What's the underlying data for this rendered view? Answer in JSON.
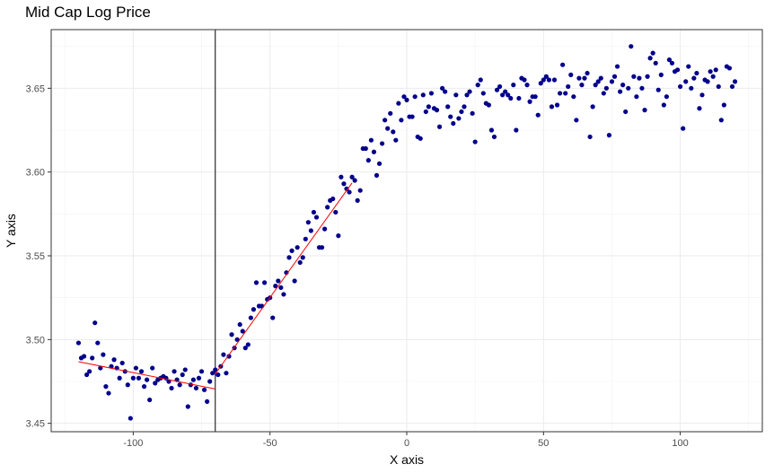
{
  "chart_data": {
    "type": "scatter",
    "title": "Mid Cap Log Price",
    "xlabel": "X axis",
    "ylabel": "Y axis",
    "xlim": [
      -130,
      130
    ],
    "ylim": [
      3.445,
      3.685
    ],
    "x_ticks": [
      -100,
      -50,
      0,
      50,
      100
    ],
    "x_tick_labels": [
      "-100",
      "-50",
      "0",
      "50",
      "100"
    ],
    "y_ticks": [
      3.45,
      3.5,
      3.55,
      3.6,
      3.65
    ],
    "y_tick_labels": [
      "3.45",
      "3.50",
      "3.55",
      "3.60",
      "3.65"
    ],
    "grid": true,
    "vline_x": -70,
    "point_color": "#00008B",
    "fit_color": "#ff0000",
    "points": [
      [
        -120,
        3.498
      ],
      [
        -119,
        3.489
      ],
      [
        -118,
        3.49
      ],
      [
        -117,
        3.479
      ],
      [
        -116,
        3.481
      ],
      [
        -115,
        3.489
      ],
      [
        -114,
        3.51
      ],
      [
        -113,
        3.498
      ],
      [
        -112,
        3.483
      ],
      [
        -111,
        3.491
      ],
      [
        -110,
        3.472
      ],
      [
        -109,
        3.468
      ],
      [
        -108,
        3.484
      ],
      [
        -107,
        3.488
      ],
      [
        -106,
        3.483
      ],
      [
        -105,
        3.477
      ],
      [
        -104,
        3.486
      ],
      [
        -103,
        3.481
      ],
      [
        -102,
        3.473
      ],
      [
        -101,
        3.453
      ],
      [
        -100,
        3.477
      ],
      [
        -99,
        3.483
      ],
      [
        -98,
        3.477
      ],
      [
        -97,
        3.481
      ],
      [
        -96,
        3.472
      ],
      [
        -95,
        3.476
      ],
      [
        -94,
        3.464
      ],
      [
        -93,
        3.483
      ],
      [
        -92,
        3.474
      ],
      [
        -91,
        3.476
      ],
      [
        -90,
        3.477
      ],
      [
        -89,
        3.478
      ],
      [
        -88,
        3.477
      ],
      [
        -87,
        3.475
      ],
      [
        -86,
        3.471
      ],
      [
        -85,
        3.481
      ],
      [
        -84,
        3.476
      ],
      [
        -83,
        3.473
      ],
      [
        -82,
        3.479
      ],
      [
        -81,
        3.482
      ],
      [
        -80,
        3.46
      ],
      [
        -79,
        3.473
      ],
      [
        -78,
        3.476
      ],
      [
        -77,
        3.471
      ],
      [
        -76,
        3.477
      ],
      [
        -75,
        3.481
      ],
      [
        -74,
        3.47
      ],
      [
        -73,
        3.463
      ],
      [
        -72,
        3.475
      ],
      [
        -71,
        3.48
      ],
      [
        -70,
        3.482
      ],
      [
        -69,
        3.479
      ],
      [
        -68,
        3.484
      ],
      [
        -67,
        3.491
      ],
      [
        -66,
        3.48
      ],
      [
        -65,
        3.49
      ],
      [
        -64,
        3.503
      ],
      [
        -63,
        3.495
      ],
      [
        -62,
        3.5
      ],
      [
        -61,
        3.509
      ],
      [
        -60,
        3.505
      ],
      [
        -59,
        3.495
      ],
      [
        -58,
        3.497
      ],
      [
        -57,
        3.513
      ],
      [
        -56,
        3.518
      ],
      [
        -55,
        3.534
      ],
      [
        -54,
        3.52
      ],
      [
        -53,
        3.52
      ],
      [
        -52,
        3.534
      ],
      [
        -51,
        3.524
      ],
      [
        -50,
        3.525
      ],
      [
        -49,
        3.513
      ],
      [
        -48,
        3.532
      ],
      [
        -47,
        3.535
      ],
      [
        -46,
        3.531
      ],
      [
        -45,
        3.527
      ],
      [
        -44,
        3.54
      ],
      [
        -43,
        3.549
      ],
      [
        -42,
        3.553
      ],
      [
        -41,
        3.535
      ],
      [
        -40,
        3.555
      ],
      [
        -39,
        3.546
      ],
      [
        -38,
        3.549
      ],
      [
        -37,
        3.56
      ],
      [
        -36,
        3.57
      ],
      [
        -35,
        3.565
      ],
      [
        -34,
        3.576
      ],
      [
        -33,
        3.573
      ],
      [
        -32,
        3.555
      ],
      [
        -31,
        3.555
      ],
      [
        -30,
        3.566
      ],
      [
        -29,
        3.579
      ],
      [
        -28,
        3.583
      ],
      [
        -27,
        3.584
      ],
      [
        -26,
        3.576
      ],
      [
        -25,
        3.562
      ],
      [
        -24,
        3.597
      ],
      [
        -23,
        3.593
      ],
      [
        -22,
        3.59
      ],
      [
        -21,
        3.588
      ],
      [
        -20,
        3.597
      ],
      [
        -19,
        3.595
      ],
      [
        -18,
        3.583
      ],
      [
        -17,
        3.589
      ],
      [
        -16,
        3.614
      ],
      [
        -15,
        3.614
      ],
      [
        -14,
        3.607
      ],
      [
        -13,
        3.619
      ],
      [
        -12,
        3.612
      ],
      [
        -11,
        3.598
      ],
      [
        -10,
        3.605
      ],
      [
        -9,
        3.617
      ],
      [
        -8,
        3.631
      ],
      [
        -7,
        3.626
      ],
      [
        -6,
        3.635
      ],
      [
        -5,
        3.624
      ],
      [
        -4,
        3.619
      ],
      [
        -3,
        3.641
      ],
      [
        -2,
        3.631
      ],
      [
        -1,
        3.645
      ],
      [
        0,
        3.643
      ],
      [
        1,
        3.633
      ],
      [
        2,
        3.633
      ],
      [
        3,
        3.645
      ],
      [
        4,
        3.621
      ],
      [
        5,
        3.62
      ],
      [
        6,
        3.646
      ],
      [
        7,
        3.636
      ],
      [
        8,
        3.639
      ],
      [
        9,
        3.647
      ],
      [
        10,
        3.638
      ],
      [
        11,
        3.637
      ],
      [
        12,
        3.627
      ],
      [
        13,
        3.65
      ],
      [
        14,
        3.648
      ],
      [
        15,
        3.639
      ],
      [
        16,
        3.633
      ],
      [
        17,
        3.629
      ],
      [
        18,
        3.646
      ],
      [
        19,
        3.632
      ],
      [
        20,
        3.636
      ],
      [
        21,
        3.639
      ],
      [
        22,
        3.646
      ],
      [
        23,
        3.648
      ],
      [
        24,
        3.635
      ],
      [
        25,
        3.618
      ],
      [
        26,
        3.652
      ],
      [
        27,
        3.655
      ],
      [
        28,
        3.647
      ],
      [
        29,
        3.641
      ],
      [
        30,
        3.64
      ],
      [
        31,
        3.625
      ],
      [
        32,
        3.621
      ],
      [
        33,
        3.649
      ],
      [
        34,
        3.651
      ],
      [
        35,
        3.646
      ],
      [
        36,
        3.648
      ],
      [
        37,
        3.646
      ],
      [
        38,
        3.644
      ],
      [
        39,
        3.652
      ],
      [
        40,
        3.625
      ],
      [
        41,
        3.644
      ],
      [
        42,
        3.656
      ],
      [
        43,
        3.655
      ],
      [
        44,
        3.652
      ],
      [
        45,
        3.642
      ],
      [
        46,
        3.645
      ],
      [
        47,
        3.645
      ],
      [
        48,
        3.634
      ],
      [
        49,
        3.653
      ],
      [
        50,
        3.655
      ],
      [
        51,
        3.657
      ],
      [
        52,
        3.655
      ],
      [
        53,
        3.639
      ],
      [
        54,
        3.655
      ],
      [
        55,
        3.64
      ],
      [
        56,
        3.647
      ],
      [
        57,
        3.664
      ],
      [
        58,
        3.647
      ],
      [
        59,
        3.651
      ],
      [
        60,
        3.658
      ],
      [
        61,
        3.645
      ],
      [
        62,
        3.631
      ],
      [
        63,
        3.656
      ],
      [
        64,
        3.652
      ],
      [
        65,
        3.656
      ],
      [
        66,
        3.659
      ],
      [
        67,
        3.621
      ],
      [
        68,
        3.639
      ],
      [
        69,
        3.652
      ],
      [
        70,
        3.654
      ],
      [
        71,
        3.656
      ],
      [
        72,
        3.647
      ],
      [
        73,
        3.65
      ],
      [
        74,
        3.622
      ],
      [
        75,
        3.654
      ],
      [
        76,
        3.657
      ],
      [
        77,
        3.663
      ],
      [
        78,
        3.648
      ],
      [
        79,
        3.652
      ],
      [
        80,
        3.636
      ],
      [
        81,
        3.65
      ],
      [
        82,
        3.675
      ],
      [
        83,
        3.657
      ],
      [
        84,
        3.645
      ],
      [
        85,
        3.656
      ],
      [
        86,
        3.65
      ],
      [
        87,
        3.637
      ],
      [
        88,
        3.657
      ],
      [
        89,
        3.668
      ],
      [
        90,
        3.671
      ],
      [
        91,
        3.665
      ],
      [
        92,
        3.649
      ],
      [
        93,
        3.658
      ],
      [
        94,
        3.64
      ],
      [
        95,
        3.645
      ],
      [
        96,
        3.667
      ],
      [
        97,
        3.665
      ],
      [
        98,
        3.66
      ],
      [
        99,
        3.661
      ],
      [
        100,
        3.651
      ],
      [
        101,
        3.626
      ],
      [
        102,
        3.654
      ],
      [
        103,
        3.663
      ],
      [
        104,
        3.65
      ],
      [
        105,
        3.656
      ],
      [
        106,
        3.659
      ],
      [
        107,
        3.638
      ],
      [
        108,
        3.646
      ],
      [
        109,
        3.655
      ],
      [
        110,
        3.654
      ],
      [
        111,
        3.66
      ],
      [
        112,
        3.657
      ],
      [
        113,
        3.661
      ],
      [
        114,
        3.651
      ],
      [
        115,
        3.631
      ],
      [
        116,
        3.64
      ],
      [
        117,
        3.663
      ],
      [
        118,
        3.662
      ],
      [
        119,
        3.651
      ],
      [
        120,
        3.654
      ]
    ],
    "fit_segments": [
      {
        "x": [
          -120,
          -70
        ],
        "y": [
          3.4868,
          3.4705
        ]
      },
      {
        "x": [
          -70,
          -20
        ],
        "y": [
          3.4795,
          3.5935
        ]
      }
    ]
  }
}
